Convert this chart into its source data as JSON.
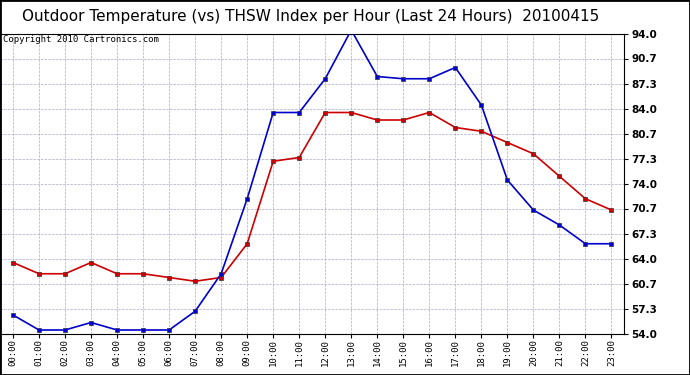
{
  "title": "Outdoor Temperature (vs) THSW Index per Hour (Last 24 Hours)  20100415",
  "copyright": "Copyright 2010 Cartronics.com",
  "hours": [
    "00:00",
    "01:00",
    "02:00",
    "03:00",
    "04:00",
    "05:00",
    "06:00",
    "07:00",
    "08:00",
    "09:00",
    "10:00",
    "11:00",
    "12:00",
    "13:00",
    "14:00",
    "15:00",
    "16:00",
    "17:00",
    "18:00",
    "19:00",
    "20:00",
    "21:00",
    "22:00",
    "23:00"
  ],
  "temp": [
    63.5,
    62.0,
    62.0,
    63.5,
    62.0,
    62.0,
    61.5,
    61.0,
    61.5,
    66.0,
    77.0,
    77.5,
    83.5,
    83.5,
    82.5,
    82.5,
    83.5,
    81.5,
    81.0,
    79.5,
    78.0,
    75.0,
    72.0,
    70.5
  ],
  "thsw": [
    56.5,
    54.5,
    54.5,
    55.5,
    54.5,
    54.5,
    54.5,
    57.0,
    62.0,
    72.0,
    83.5,
    83.5,
    88.0,
    94.5,
    88.3,
    88.0,
    88.0,
    89.5,
    84.5,
    74.5,
    70.5,
    68.5,
    66.0,
    66.0
  ],
  "temp_color": "#cc0000",
  "thsw_color": "#0000cc",
  "bg_color": "#ffffff",
  "plot_bg": "#ffffff",
  "grid_color": "#aaaacc",
  "title_fontsize": 11,
  "copyright_fontsize": 6.5,
  "ylim_min": 54.0,
  "ylim_max": 94.0,
  "yticks": [
    54.0,
    57.3,
    60.7,
    64.0,
    67.3,
    70.7,
    74.0,
    77.3,
    80.7,
    84.0,
    87.3,
    90.7,
    94.0
  ]
}
